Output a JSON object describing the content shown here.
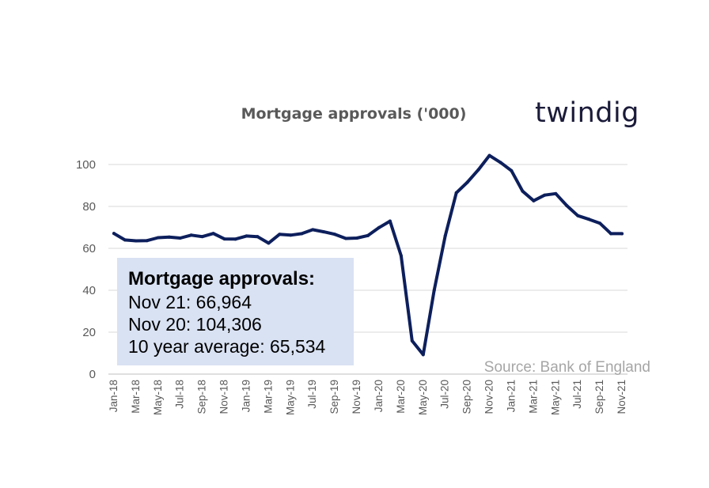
{
  "chart_data": {
    "type": "line",
    "title": "Mortgage approvals ('000)",
    "xlabel": "",
    "ylabel": "",
    "ylim": [
      0,
      110
    ],
    "yticks": [
      0,
      20,
      40,
      60,
      80,
      100
    ],
    "grid": true,
    "legend": "none",
    "line_color": "#0d1f5c",
    "x": [
      "Jan-18",
      "Feb-18",
      "Mar-18",
      "Apr-18",
      "May-18",
      "Jun-18",
      "Jul-18",
      "Aug-18",
      "Sep-18",
      "Oct-18",
      "Nov-18",
      "Dec-18",
      "Jan-19",
      "Feb-19",
      "Mar-19",
      "Apr-19",
      "May-19",
      "Jun-19",
      "Jul-19",
      "Aug-19",
      "Sep-19",
      "Oct-19",
      "Nov-19",
      "Dec-19",
      "Jan-20",
      "Feb-20",
      "Mar-20",
      "Apr-20",
      "May-20",
      "Jun-20",
      "Jul-20",
      "Aug-20",
      "Sep-20",
      "Oct-20",
      "Nov-20",
      "Dec-20",
      "Jan-21",
      "Feb-21",
      "Mar-21",
      "Apr-21",
      "May-21",
      "Jun-21",
      "Jul-21",
      "Aug-21",
      "Sep-21",
      "Oct-21",
      "Nov-21"
    ],
    "xtick_labels": [
      "Jan-18",
      "Mar-18",
      "May-18",
      "Jul-18",
      "Sep-18",
      "Nov-18",
      "Jan-19",
      "Mar-19",
      "May-19",
      "Jul-19",
      "Sep-19",
      "Nov-19",
      "Jan-20",
      "Mar-20",
      "May-20",
      "Jul-20",
      "Sep-20",
      "Nov-20",
      "Jan-21",
      "Mar-21",
      "May-21",
      "Jul-21",
      "Sep-21",
      "Nov-21"
    ],
    "series": [
      {
        "values": [
          67.1,
          64.0,
          63.6,
          63.7,
          65.1,
          65.4,
          64.9,
          66.3,
          65.6,
          67.1,
          64.5,
          64.4,
          65.9,
          65.6,
          62.5,
          66.7,
          66.3,
          67.0,
          68.9,
          67.9,
          66.7,
          64.7,
          64.9,
          66.1,
          69.9,
          73.0,
          56.5,
          15.9,
          9.3,
          40.0,
          66.0,
          86.5,
          91.5,
          97.5,
          104.3,
          101.0,
          97.0,
          87.3,
          82.7,
          85.4,
          86.1,
          80.4,
          75.6,
          73.9,
          72.0,
          67.0,
          67.0
        ]
      }
    ]
  },
  "logo": {
    "text": "twindig"
  },
  "info_box": {
    "heading": "Mortgage approvals:",
    "lines": [
      "Nov 21: 66,964",
      "Nov 20: 104,306",
      "10 year average: 65,534"
    ],
    "background": "#d9e2f3"
  },
  "source": {
    "text": "Source: Bank of England"
  }
}
